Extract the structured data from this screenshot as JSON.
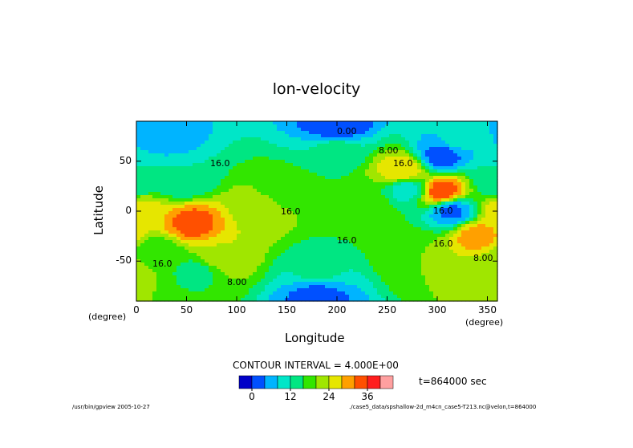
{
  "chart_data": {
    "type": "heatmap",
    "title": "lon-velocity",
    "xlabel": "Longitude",
    "ylabel": "Latitude",
    "x_unit": "(degree)",
    "y_unit": "(degree)",
    "xlim": [
      0,
      360
    ],
    "ylim": [
      -90,
      90
    ],
    "x_ticks": [
      0,
      50,
      100,
      150,
      200,
      250,
      300,
      350
    ],
    "y_ticks": [
      -50,
      0,
      50
    ],
    "contour_interval_text": "CONTOUR INTERVAL = 4.000E+00",
    "time_label": "t=864000 sec",
    "contour_labels": [
      "0.00",
      "8.00",
      "16.0",
      "16.0",
      "16.0",
      "16.0",
      "16.0",
      "8.00",
      "8.00",
      "16.0",
      "16.0"
    ],
    "colorbar": {
      "colors": [
        "#0000c8",
        "#0050ff",
        "#00b4ff",
        "#00e6c8",
        "#00e682",
        "#32e600",
        "#a0e600",
        "#e6e600",
        "#ffa000",
        "#ff5000",
        "#ff1e1e",
        "#ffa0a0"
      ],
      "tick_labels": [
        "0",
        "12",
        "24",
        "36"
      ]
    },
    "features": [
      {
        "lon": 200,
        "lat": 85,
        "value": 0
      },
      {
        "lon": 30,
        "lat": 75,
        "value": 6
      },
      {
        "lon": 305,
        "lat": 55,
        "value": 2
      },
      {
        "lon": 320,
        "lat": 72,
        "value": 9
      },
      {
        "lon": 305,
        "lat": 20,
        "value": 35
      },
      {
        "lon": 315,
        "lat": 0,
        "value": 3
      },
      {
        "lon": 340,
        "lat": -25,
        "value": 30
      },
      {
        "lon": 55,
        "lat": -12,
        "value": 34
      },
      {
        "lon": 265,
        "lat": 40,
        "value": 28
      },
      {
        "lon": 270,
        "lat": 22,
        "value": 10
      },
      {
        "lon": 120,
        "lat": 0,
        "value": 23
      },
      {
        "lon": 5,
        "lat": 0,
        "value": 26
      },
      {
        "lon": 45,
        "lat": 30,
        "value": 12
      },
      {
        "lon": 85,
        "lat": -45,
        "value": 24
      },
      {
        "lon": 150,
        "lat": 20,
        "value": 18
      },
      {
        "lon": 230,
        "lat": 5,
        "value": 19
      },
      {
        "lon": 280,
        "lat": -45,
        "value": 20
      },
      {
        "lon": 350,
        "lat": -60,
        "value": 22
      },
      {
        "lon": 20,
        "lat": -40,
        "value": 17
      },
      {
        "lon": 180,
        "lat": -60,
        "value": 13
      },
      {
        "lon": 60,
        "lat": -60,
        "value": 15
      },
      {
        "lon": 360,
        "lat": 30,
        "value": 12
      },
      {
        "lon": 200,
        "lat": 60,
        "value": 14
      },
      {
        "lon": 180,
        "lat": -85,
        "value": 2
      }
    ]
  },
  "footer": {
    "left": "/usr/bin/gpview  2005-10-27",
    "right": "./case5_data/spshallow-2d_m4cn_case5-T213.nc@velon,t=864000"
  }
}
